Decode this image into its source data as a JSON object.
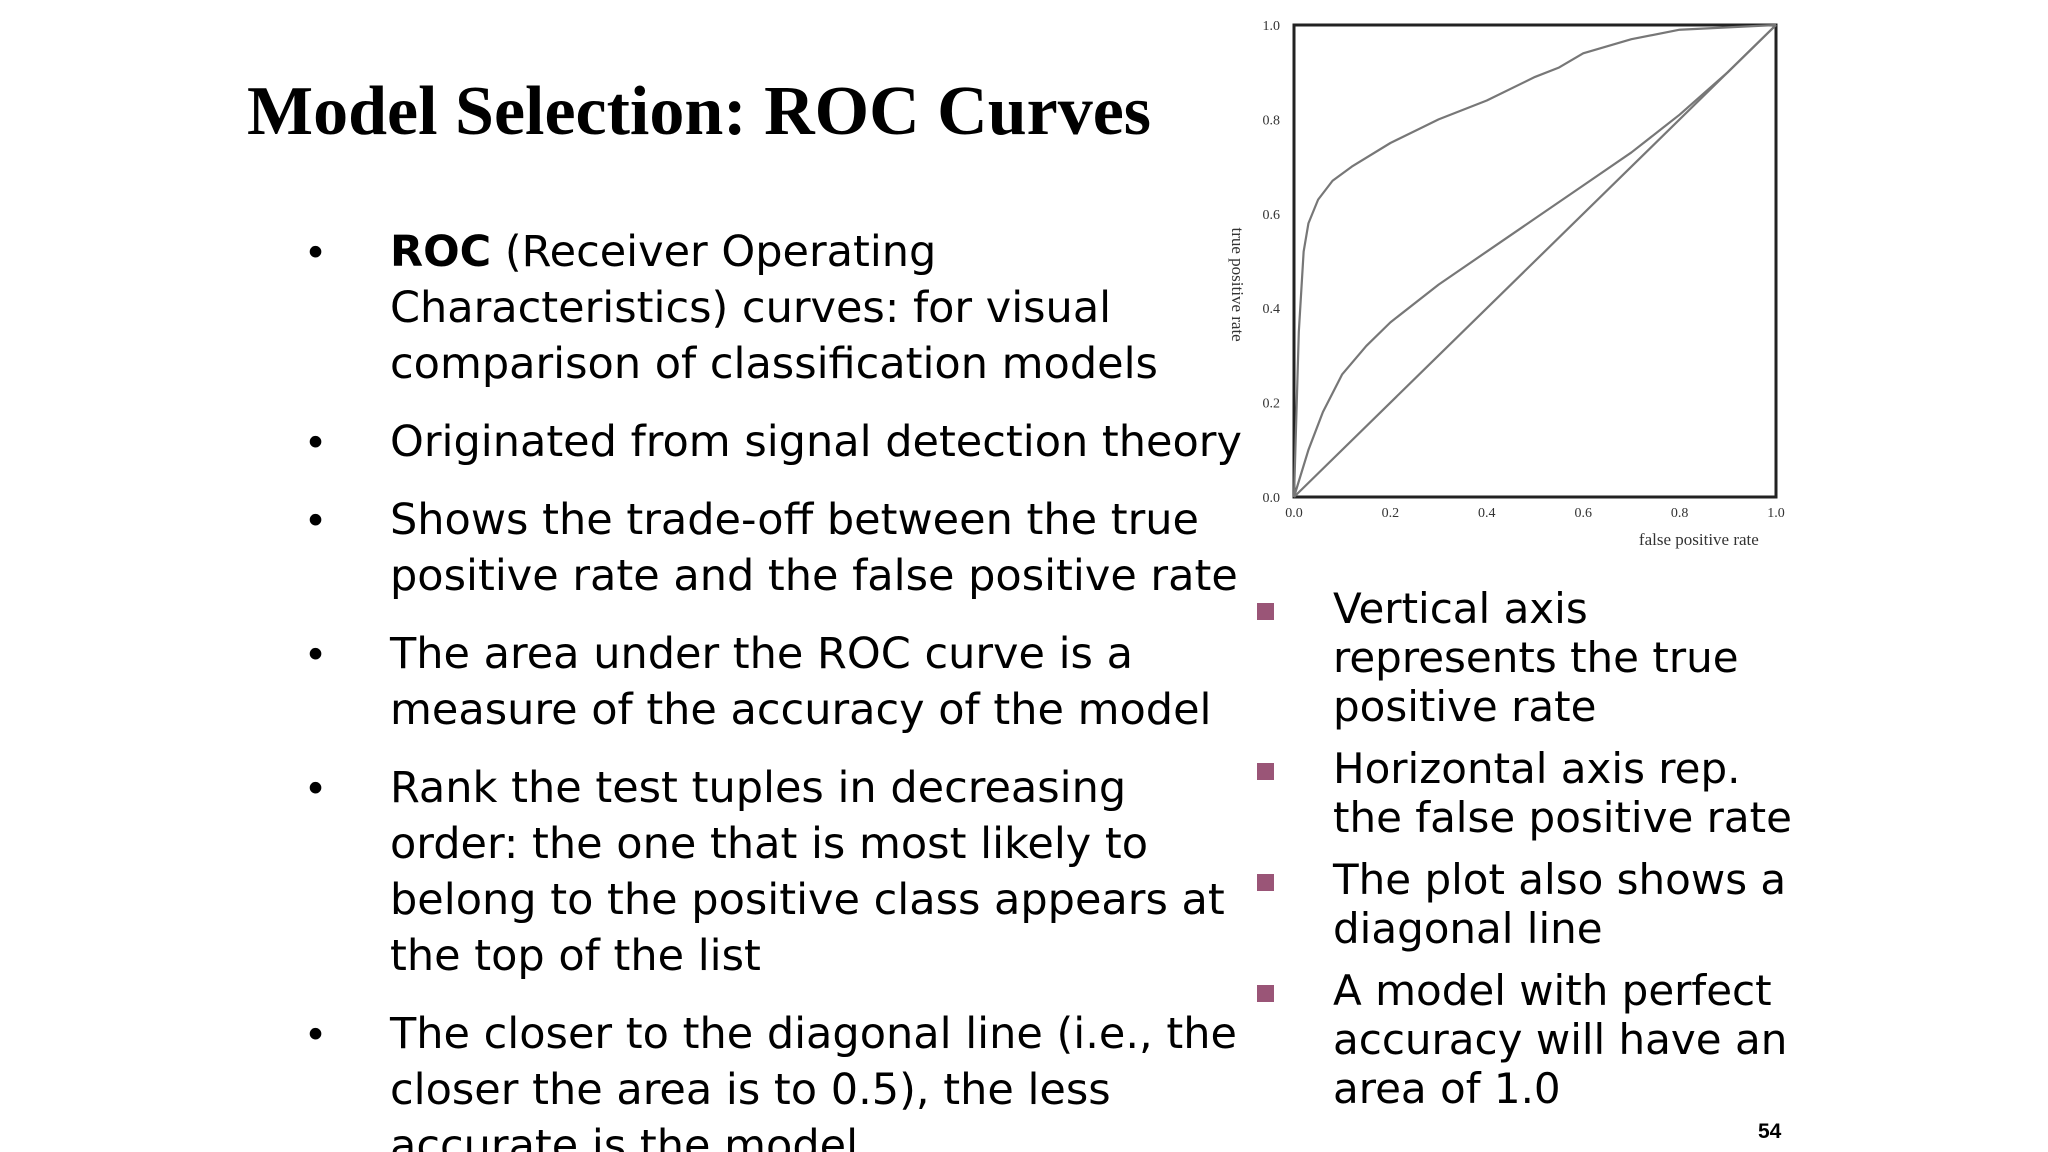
{
  "slide": {
    "title": "Model Selection: ROC Curves",
    "page_number": "54"
  },
  "left_bullets": [
    {
      "bold": "ROC",
      "text": " (Receiver Operating Characteristics) curves: for visual comparison of classification models"
    },
    {
      "bold": "",
      "text": "Originated from signal detection theory"
    },
    {
      "bold": "",
      "text": "Shows the trade-off between the true positive rate and the false positive rate"
    },
    {
      "bold": "",
      "text": "The area under the ROC curve is a measure of the accuracy of the model"
    },
    {
      "bold": "",
      "text": "Rank the test tuples in decreasing order: the one that is most likely to belong to the positive class appears at the top of the list"
    },
    {
      "bold": "",
      "text": "The closer to the diagonal line (i.e., the closer the area is to 0.5), the less accurate is the model"
    }
  ],
  "right_bullets": [
    "Vertical axis represents the true positive rate",
    "Horizontal axis rep. the false positive rate",
    "The plot also shows a diagonal line",
    "A model with perfect accuracy will have an area of 1.0"
  ],
  "colors": {
    "bullet_square": "#9a5577",
    "curve": "#777777",
    "axis": "#222222"
  },
  "chart_data": {
    "type": "line",
    "title": "",
    "xlabel": "false positive rate",
    "ylabel": "true positive rate",
    "xlim": [
      0,
      1
    ],
    "ylim": [
      0,
      1
    ],
    "x_ticks": [
      "0.0",
      "0.2",
      "0.4",
      "0.6",
      "0.8",
      "1.0"
    ],
    "y_ticks": [
      "0.0",
      "0.2",
      "0.4",
      "0.6",
      "0.8",
      "1.0"
    ],
    "grid": false,
    "legend": "none",
    "series": [
      {
        "x": [
          0,
          0.01,
          0.02,
          0.03,
          0.05,
          0.08,
          0.12,
          0.2,
          0.3,
          0.4,
          0.5,
          0.55,
          0.6,
          0.7,
          0.8,
          0.9,
          1.0
        ],
        "y": [
          0,
          0.35,
          0.52,
          0.58,
          0.63,
          0.67,
          0.7,
          0.75,
          0.8,
          0.84,
          0.89,
          0.91,
          0.94,
          0.97,
          0.99,
          0.995,
          1.0
        ]
      },
      {
        "x": [
          0,
          0.03,
          0.06,
          0.1,
          0.15,
          0.2,
          0.3,
          0.4,
          0.5,
          0.6,
          0.7,
          0.8,
          0.9,
          1.0
        ],
        "y": [
          0,
          0.1,
          0.18,
          0.26,
          0.32,
          0.37,
          0.45,
          0.52,
          0.59,
          0.66,
          0.73,
          0.81,
          0.9,
          1.0
        ]
      },
      {
        "x": [
          0,
          1
        ],
        "y": [
          0,
          1
        ]
      }
    ]
  }
}
